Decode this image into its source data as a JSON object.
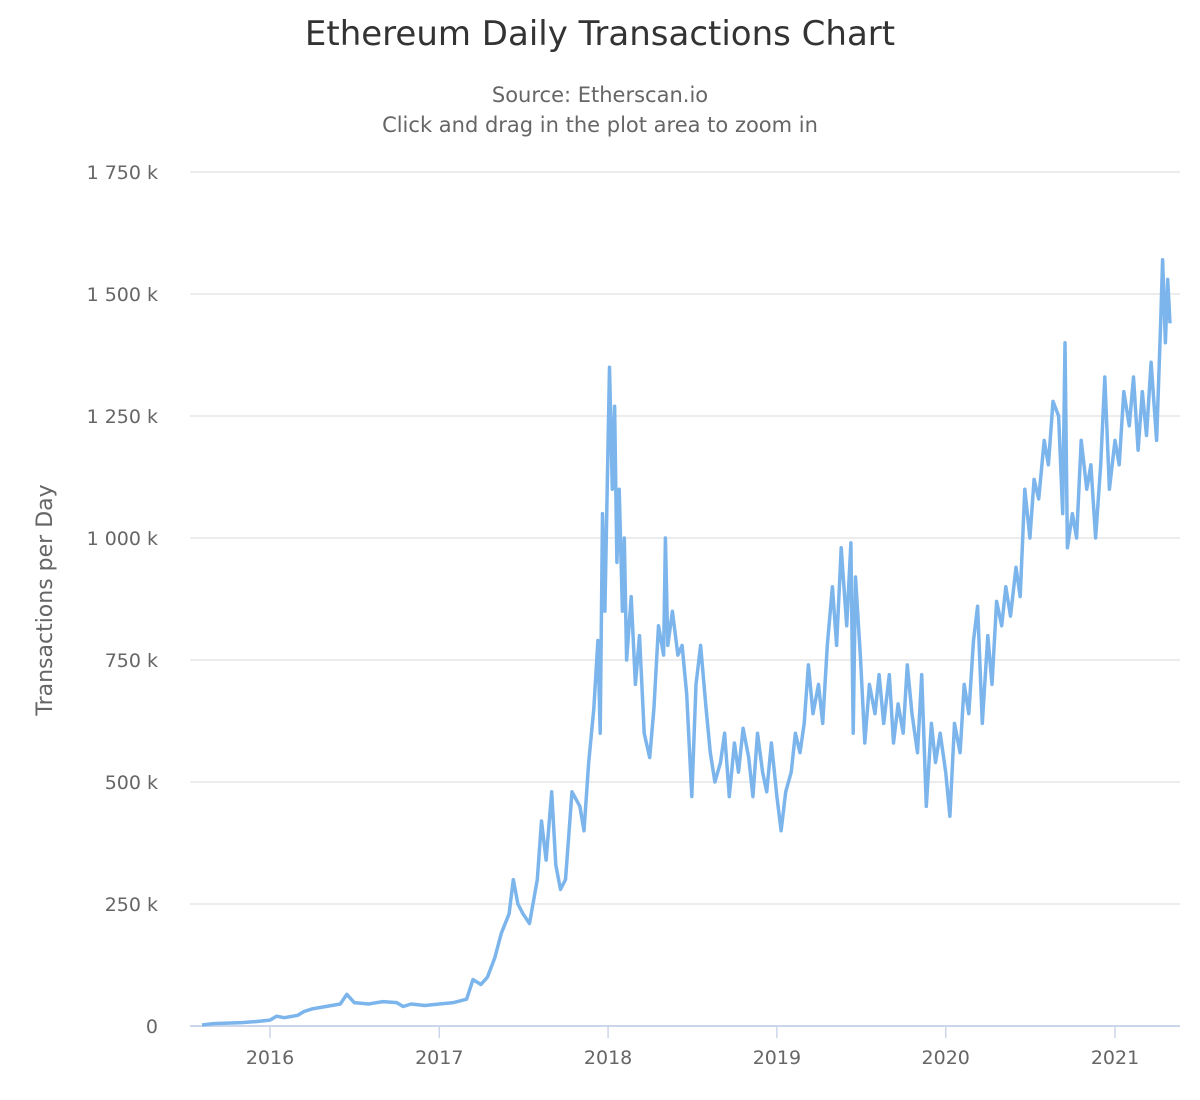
{
  "chart_data": {
    "type": "line",
    "title": "Ethereum Daily Transactions Chart",
    "subtitle": [
      "Source: Etherscan.io",
      "Click and drag in the plot area to zoom in"
    ],
    "xlabel": "",
    "ylabel": "Transactions per Day",
    "ylim": [
      0,
      1750000
    ],
    "yticks": [
      0,
      250000,
      500000,
      750000,
      1000000,
      1250000,
      1500000,
      1750000
    ],
    "ytick_labels": [
      "0",
      "250 k",
      "500 k",
      "750 k",
      "1 000 k",
      "1 250 k",
      "1 500 k",
      "1 750 k"
    ],
    "xticks": [
      "2016",
      "2017",
      "2018",
      "2019",
      "2020",
      "2021"
    ],
    "grid": true,
    "line_color": "#7cb5ec",
    "points": [
      [
        "2015-08-07",
        2000
      ],
      [
        "2015-09-01",
        5000
      ],
      [
        "2015-10-01",
        6000
      ],
      [
        "2015-11-01",
        7000
      ],
      [
        "2015-12-01",
        9000
      ],
      [
        "2016-01-01",
        12000
      ],
      [
        "2016-01-15",
        20000
      ],
      [
        "2016-02-01",
        17000
      ],
      [
        "2016-03-01",
        22000
      ],
      [
        "2016-03-15",
        30000
      ],
      [
        "2016-04-01",
        35000
      ],
      [
        "2016-05-01",
        40000
      ],
      [
        "2016-06-01",
        45000
      ],
      [
        "2016-06-15",
        65000
      ],
      [
        "2016-07-01",
        48000
      ],
      [
        "2016-08-01",
        45000
      ],
      [
        "2016-09-01",
        50000
      ],
      [
        "2016-10-01",
        48000
      ],
      [
        "2016-10-15",
        40000
      ],
      [
        "2016-11-01",
        45000
      ],
      [
        "2016-12-01",
        42000
      ],
      [
        "2017-01-01",
        45000
      ],
      [
        "2017-02-01",
        48000
      ],
      [
        "2017-03-01",
        55000
      ],
      [
        "2017-03-15",
        95000
      ],
      [
        "2017-04-01",
        85000
      ],
      [
        "2017-04-15",
        100000
      ],
      [
        "2017-05-01",
        140000
      ],
      [
        "2017-05-15",
        190000
      ],
      [
        "2017-06-01",
        230000
      ],
      [
        "2017-06-10",
        300000
      ],
      [
        "2017-06-20",
        250000
      ],
      [
        "2017-07-01",
        230000
      ],
      [
        "2017-07-15",
        210000
      ],
      [
        "2017-08-01",
        300000
      ],
      [
        "2017-08-10",
        420000
      ],
      [
        "2017-08-20",
        340000
      ],
      [
        "2017-09-01",
        480000
      ],
      [
        "2017-09-10",
        330000
      ],
      [
        "2017-09-20",
        280000
      ],
      [
        "2017-10-01",
        300000
      ],
      [
        "2017-10-15",
        480000
      ],
      [
        "2017-11-01",
        450000
      ],
      [
        "2017-11-10",
        400000
      ],
      [
        "2017-11-20",
        540000
      ],
      [
        "2017-12-01",
        650000
      ],
      [
        "2017-12-10",
        790000
      ],
      [
        "2017-12-15",
        600000
      ],
      [
        "2017-12-20",
        1050000
      ],
      [
        "2017-12-25",
        850000
      ],
      [
        "2018-01-04",
        1350000
      ],
      [
        "2018-01-10",
        1100000
      ],
      [
        "2018-01-15",
        1270000
      ],
      [
        "2018-01-20",
        950000
      ],
      [
        "2018-01-25",
        1100000
      ],
      [
        "2018-02-01",
        850000
      ],
      [
        "2018-02-05",
        1000000
      ],
      [
        "2018-02-10",
        750000
      ],
      [
        "2018-02-20",
        880000
      ],
      [
        "2018-03-01",
        700000
      ],
      [
        "2018-03-10",
        800000
      ],
      [
        "2018-03-20",
        600000
      ],
      [
        "2018-04-01",
        550000
      ],
      [
        "2018-04-10",
        650000
      ],
      [
        "2018-04-20",
        820000
      ],
      [
        "2018-05-01",
        760000
      ],
      [
        "2018-05-05",
        1000000
      ],
      [
        "2018-05-10",
        780000
      ],
      [
        "2018-05-20",
        850000
      ],
      [
        "2018-06-01",
        760000
      ],
      [
        "2018-06-10",
        780000
      ],
      [
        "2018-06-20",
        680000
      ],
      [
        "2018-07-01",
        470000
      ],
      [
        "2018-07-10",
        700000
      ],
      [
        "2018-07-20",
        780000
      ],
      [
        "2018-08-01",
        650000
      ],
      [
        "2018-08-10",
        560000
      ],
      [
        "2018-08-20",
        500000
      ],
      [
        "2018-09-01",
        540000
      ],
      [
        "2018-09-10",
        600000
      ],
      [
        "2018-09-20",
        470000
      ],
      [
        "2018-10-01",
        580000
      ],
      [
        "2018-10-10",
        520000
      ],
      [
        "2018-10-20",
        610000
      ],
      [
        "2018-11-01",
        550000
      ],
      [
        "2018-11-10",
        470000
      ],
      [
        "2018-11-20",
        600000
      ],
      [
        "2018-12-01",
        520000
      ],
      [
        "2018-12-10",
        480000
      ],
      [
        "2018-12-20",
        580000
      ],
      [
        "2019-01-01",
        470000
      ],
      [
        "2019-01-10",
        400000
      ],
      [
        "2019-01-20",
        480000
      ],
      [
        "2019-02-01",
        520000
      ],
      [
        "2019-02-10",
        600000
      ],
      [
        "2019-02-20",
        560000
      ],
      [
        "2019-03-01",
        620000
      ],
      [
        "2019-03-10",
        740000
      ],
      [
        "2019-03-20",
        640000
      ],
      [
        "2019-04-01",
        700000
      ],
      [
        "2019-04-10",
        620000
      ],
      [
        "2019-04-20",
        780000
      ],
      [
        "2019-05-01",
        900000
      ],
      [
        "2019-05-10",
        780000
      ],
      [
        "2019-05-20",
        980000
      ],
      [
        "2019-06-01",
        820000
      ],
      [
        "2019-06-10",
        990000
      ],
      [
        "2019-06-15",
        600000
      ],
      [
        "2019-06-20",
        920000
      ],
      [
        "2019-07-01",
        750000
      ],
      [
        "2019-07-10",
        580000
      ],
      [
        "2019-07-20",
        700000
      ],
      [
        "2019-08-01",
        640000
      ],
      [
        "2019-08-10",
        720000
      ],
      [
        "2019-08-20",
        620000
      ],
      [
        "2019-09-01",
        720000
      ],
      [
        "2019-09-10",
        580000
      ],
      [
        "2019-09-20",
        660000
      ],
      [
        "2019-10-01",
        600000
      ],
      [
        "2019-10-10",
        740000
      ],
      [
        "2019-10-20",
        640000
      ],
      [
        "2019-11-01",
        560000
      ],
      [
        "2019-11-10",
        720000
      ],
      [
        "2019-11-20",
        450000
      ],
      [
        "2019-12-01",
        620000
      ],
      [
        "2019-12-10",
        540000
      ],
      [
        "2019-12-20",
        600000
      ],
      [
        "2020-01-01",
        520000
      ],
      [
        "2020-01-10",
        430000
      ],
      [
        "2020-01-20",
        620000
      ],
      [
        "2020-02-01",
        560000
      ],
      [
        "2020-02-10",
        700000
      ],
      [
        "2020-02-20",
        640000
      ],
      [
        "2020-03-01",
        790000
      ],
      [
        "2020-03-10",
        860000
      ],
      [
        "2020-03-20",
        620000
      ],
      [
        "2020-04-01",
        800000
      ],
      [
        "2020-04-10",
        700000
      ],
      [
        "2020-04-20",
        870000
      ],
      [
        "2020-05-01",
        820000
      ],
      [
        "2020-05-10",
        900000
      ],
      [
        "2020-05-20",
        840000
      ],
      [
        "2020-06-01",
        940000
      ],
      [
        "2020-06-10",
        880000
      ],
      [
        "2020-06-20",
        1100000
      ],
      [
        "2020-07-01",
        1000000
      ],
      [
        "2020-07-10",
        1120000
      ],
      [
        "2020-07-20",
        1080000
      ],
      [
        "2020-08-01",
        1200000
      ],
      [
        "2020-08-10",
        1150000
      ],
      [
        "2020-08-20",
        1280000
      ],
      [
        "2020-09-01",
        1250000
      ],
      [
        "2020-09-10",
        1050000
      ],
      [
        "2020-09-15",
        1400000
      ],
      [
        "2020-09-20",
        980000
      ],
      [
        "2020-10-01",
        1050000
      ],
      [
        "2020-10-10",
        1000000
      ],
      [
        "2020-10-20",
        1200000
      ],
      [
        "2020-11-01",
        1100000
      ],
      [
        "2020-11-10",
        1150000
      ],
      [
        "2020-11-20",
        1000000
      ],
      [
        "2020-12-01",
        1150000
      ],
      [
        "2020-12-10",
        1330000
      ],
      [
        "2020-12-20",
        1100000
      ],
      [
        "2021-01-01",
        1200000
      ],
      [
        "2021-01-10",
        1150000
      ],
      [
        "2021-01-20",
        1300000
      ],
      [
        "2021-02-01",
        1230000
      ],
      [
        "2021-02-10",
        1330000
      ],
      [
        "2021-02-20",
        1180000
      ],
      [
        "2021-03-01",
        1300000
      ],
      [
        "2021-03-10",
        1210000
      ],
      [
        "2021-03-20",
        1360000
      ],
      [
        "2021-04-01",
        1200000
      ],
      [
        "2021-04-10",
        1450000
      ],
      [
        "2021-04-14",
        1570000
      ],
      [
        "2021-04-20",
        1400000
      ],
      [
        "2021-04-25",
        1530000
      ],
      [
        "2021-04-30",
        1440000
      ]
    ]
  }
}
